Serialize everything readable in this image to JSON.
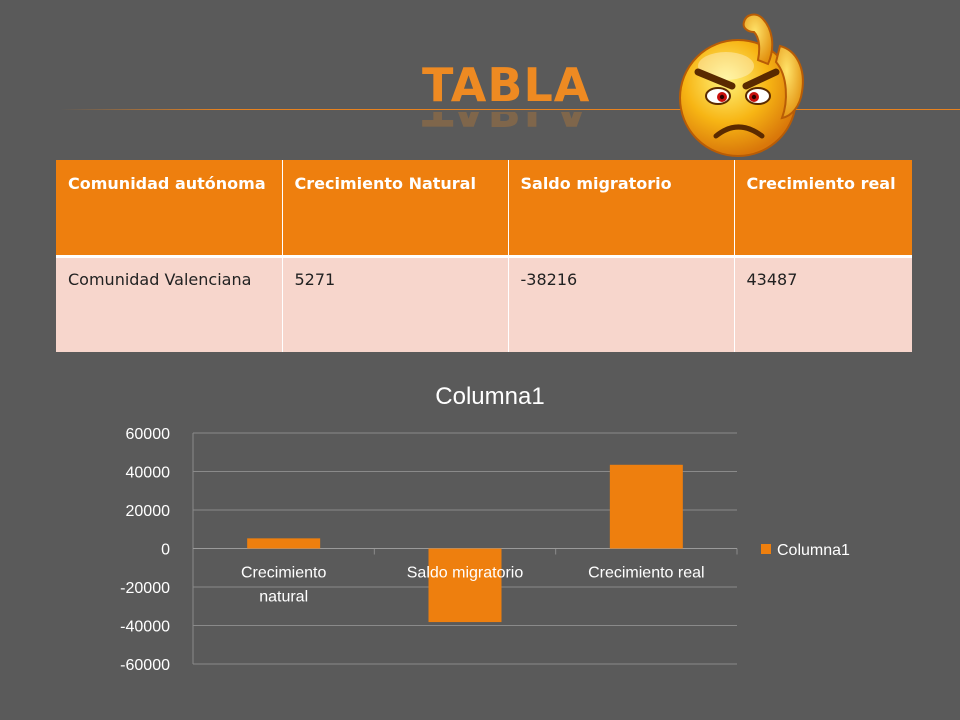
{
  "slide": {
    "title": "Tabla"
  },
  "table": {
    "headers": [
      "Comunidad autónoma",
      "Crecimiento Natural",
      "Saldo migratorio",
      "Crecimiento real"
    ],
    "rows": [
      [
        "Comunidad Valenciana",
        "5271",
        "-38216",
        "43487"
      ]
    ]
  },
  "colors": {
    "accent": "#ee7f0e",
    "table_row": "#f7d6cc",
    "background": "#5a5a5a",
    "smiley_face": "#f5a10a"
  },
  "icons": {
    "smiley": "angry-smiley-icon"
  },
  "chart_data": {
    "type": "bar",
    "title": "Columna1",
    "categories": [
      "Crecimiento natural",
      "Saldo migratorio",
      "Crecimiento real"
    ],
    "category_lines": [
      [
        "Crecimiento",
        "natural"
      ],
      [
        "Saldo migratorio"
      ],
      [
        "Crecimiento real"
      ]
    ],
    "series": [
      {
        "name": "Columna1",
        "values": [
          5271,
          -38216,
          43487
        ],
        "color": "#ee7f0e"
      }
    ],
    "ylim": [
      -60000,
      60000
    ],
    "yticks": [
      60000,
      40000,
      20000,
      0,
      -20000,
      -40000,
      -60000
    ],
    "grid": true,
    "legend": "right"
  }
}
